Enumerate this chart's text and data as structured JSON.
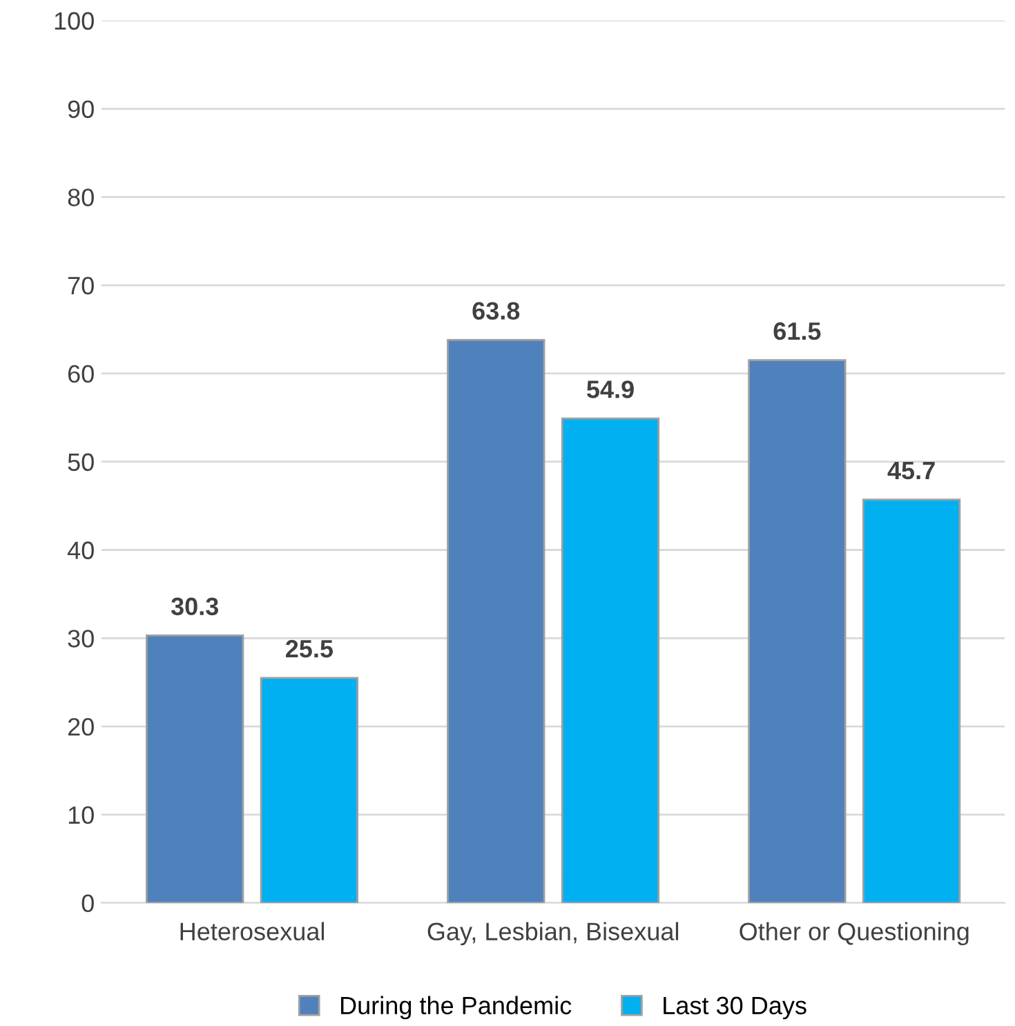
{
  "chart_data": {
    "type": "bar",
    "categories": [
      "Heterosexual",
      "Gay, Lesbian, Bisexual",
      "Other or Questioning"
    ],
    "series": [
      {
        "name": "During the Pandemic",
        "color": "#4f81bd",
        "values": [
          30.3,
          63.8,
          61.5
        ]
      },
      {
        "name": "Last 30 Days",
        "color": "#00b0f0",
        "values": [
          25.5,
          54.9,
          45.7
        ]
      }
    ],
    "ylim": [
      0,
      100
    ],
    "yticks": [
      0,
      10,
      20,
      30,
      40,
      50,
      60,
      70,
      80,
      90,
      100
    ],
    "grid": "y",
    "legend": "bottom",
    "data_labels": true
  }
}
